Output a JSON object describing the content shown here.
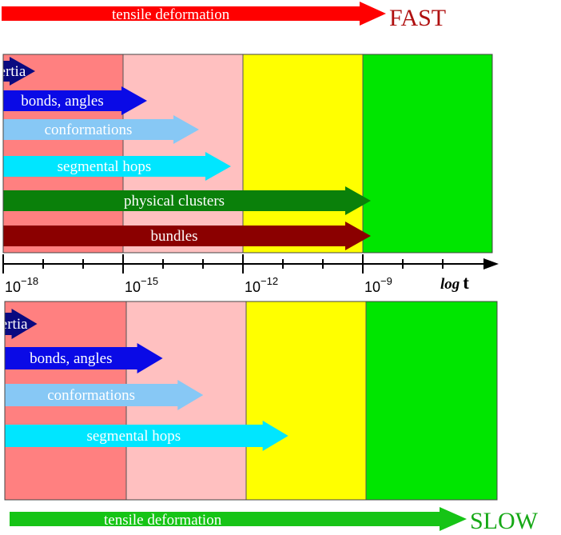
{
  "header": {
    "label": "tensile deformation",
    "word": "FAST",
    "arrow_color": "#ff0000",
    "word_color": "#b01010"
  },
  "footer": {
    "label": "tensile deformation",
    "word": "SLOW",
    "arrow_color": "#16c416",
    "word_color": "#16a816"
  },
  "zone_colors": [
    "#ff8080",
    "#ffc0c0",
    "#ffff00",
    "#00e600"
  ],
  "axis": {
    "ticks": [
      {
        "base": "10",
        "exp": "−18"
      },
      {
        "base": "10",
        "exp": "−15"
      },
      {
        "base": "10",
        "exp": "−12"
      },
      {
        "base": "10",
        "exp": "−9"
      }
    ],
    "title_italic": "log",
    "title_bold": "t"
  },
  "panels": [
    {
      "name": "fast",
      "arrows": [
        {
          "label": "inertia",
          "color": "#0a0a80",
          "end_log": -17.2
        },
        {
          "label": "bonds, angles",
          "color": "#0a0ae6",
          "end_log": -14.4
        },
        {
          "label": "conformations",
          "color": "#87c8f5",
          "end_log": -13.1
        },
        {
          "label": "segmental hops",
          "color": "#00e6ff",
          "end_log": -12.3
        },
        {
          "label": "physical clusters",
          "color": "#0a800a",
          "end_log": -8.8
        },
        {
          "label": "bundles",
          "color": "#8b0000",
          "end_log": -8.8
        }
      ]
    },
    {
      "name": "slow",
      "arrows": [
        {
          "label": "inertia",
          "color": "#0a0a80",
          "end_log": -17.2
        },
        {
          "label": "bonds, angles",
          "color": "#0a0ae6",
          "end_log": -14.1
        },
        {
          "label": "conformations",
          "color": "#87c8f5",
          "end_log": -13.1
        },
        {
          "label": "segmental hops",
          "color": "#00e6ff",
          "end_log": -11.0
        }
      ]
    }
  ]
}
